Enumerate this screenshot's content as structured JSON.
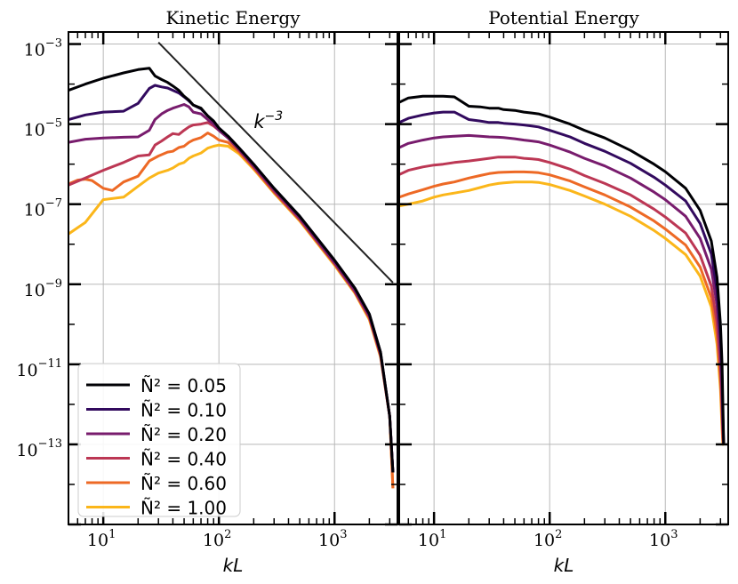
{
  "chart_data": [
    {
      "type": "line",
      "title": "Kinetic Energy",
      "xlabel": "kL",
      "ylabel": "",
      "xscale": "log",
      "yscale": "log",
      "xlim": [
        5,
        3500
      ],
      "ylim": [
        1e-15,
        0.002
      ],
      "x_ticks": [
        {
          "value": 10,
          "base": "10",
          "exp": "1"
        },
        {
          "value": 100,
          "base": "10",
          "exp": "2"
        },
        {
          "value": 1000,
          "base": "10",
          "exp": "3"
        }
      ],
      "y_ticks": [
        {
          "value": 0.001,
          "base": "10",
          "exp": "−3"
        },
        {
          "value": 1e-05,
          "base": "10",
          "exp": "−5"
        },
        {
          "value": 1e-07,
          "base": "10",
          "exp": "−7"
        },
        {
          "value": 1e-09,
          "base": "10",
          "exp": "−9"
        },
        {
          "value": 1e-11,
          "base": "10",
          "exp": "−11"
        },
        {
          "value": 1e-13,
          "base": "10",
          "exp": "−13"
        }
      ],
      "legend_position": "lower-left",
      "reference_line": {
        "label_base": "k",
        "label_exp": "−3",
        "x": [
          30,
          3200
        ],
        "y": [
          0.0011,
          1.1e-09
        ],
        "label_at": [
          200,
          1.2e-05
        ]
      },
      "series": [
        {
          "name": "Ñ² = 0.05",
          "color": "#000004",
          "x": [
            5,
            7,
            10,
            15,
            20,
            25,
            28,
            32,
            36,
            40,
            45,
            50,
            55,
            60,
            70,
            80,
            90,
            100,
            120,
            150,
            200,
            300,
            500,
            1000,
            1500,
            2000,
            2500,
            3000,
            3200
          ],
          "y": [
            7e-05,
            0.0001,
            0.00014,
            0.00019,
            0.00023,
            0.00025,
            0.00016,
            0.00013,
            0.00011,
            9e-05,
            7e-05,
            5e-05,
            4e-05,
            3e-05,
            2.5e-05,
            1.6e-05,
            1.2e-05,
            8e-06,
            5e-06,
            2.5e-06,
            1e-06,
            2.5e-07,
            5e-08,
            4e-09,
            8e-10,
            1.8e-10,
            2e-11,
            5e-13,
            2e-14
          ]
        },
        {
          "name": "Ñ² = 0.10",
          "color": "#320a5e",
          "x": [
            5,
            7,
            10,
            15,
            20,
            25,
            28,
            32,
            36,
            40,
            45,
            50,
            55,
            60,
            70,
            80,
            90,
            100,
            120,
            150,
            200,
            300,
            500,
            1000,
            1500,
            2000,
            2500,
            3000,
            3200
          ],
          "y": [
            1.3e-05,
            1.7e-05,
            2e-05,
            2.1e-05,
            3.3e-05,
            7.8e-05,
            9.3e-05,
            8.5e-05,
            8e-05,
            7e-05,
            6e-05,
            4.8e-05,
            3.8e-05,
            3e-05,
            2.4e-05,
            1.6e-05,
            1.2e-05,
            8e-06,
            5e-06,
            2.5e-06,
            1e-06,
            2.5e-07,
            5e-08,
            4e-09,
            8e-10,
            1.8e-10,
            2e-11,
            5e-13,
            2e-14
          ]
        },
        {
          "name": "Ñ² = 0.20",
          "color": "#781c6d",
          "x": [
            5,
            7,
            10,
            15,
            20,
            25,
            28,
            32,
            36,
            40,
            45,
            50,
            55,
            60,
            70,
            80,
            90,
            100,
            120,
            150,
            200,
            300,
            500,
            1000,
            1500,
            2000,
            2500,
            3000,
            3200
          ],
          "y": [
            3.5e-06,
            4.2e-06,
            4.5e-06,
            4.7e-06,
            4.8e-06,
            7e-06,
            1.3e-05,
            1.8e-05,
            2.2e-05,
            2.5e-05,
            2.8e-05,
            3.1e-05,
            2.7e-05,
            2e-05,
            1.8e-05,
            1.3e-05,
            1e-05,
            7e-06,
            4.5e-06,
            2.3e-06,
            9e-07,
            2.3e-07,
            4.5e-08,
            3.5e-09,
            7e-10,
            1.6e-10,
            1.8e-11,
            5e-13,
            2e-14
          ]
        },
        {
          "name": "Ñ² = 0.40",
          "color": "#bc3754",
          "x": [
            5,
            7,
            10,
            15,
            20,
            25,
            28,
            32,
            36,
            40,
            45,
            50,
            55,
            60,
            70,
            80,
            90,
            100,
            120,
            150,
            200,
            300,
            500,
            1000,
            1500,
            2000,
            2500,
            3000,
            3200
          ],
          "y": [
            3e-07,
            4.5e-07,
            7e-07,
            1.1e-06,
            1.6e-06,
            1.7e-06,
            3e-06,
            3.8e-06,
            4.8e-06,
            5.8e-06,
            5.5e-06,
            7e-06,
            8.5e-06,
            9.5e-06,
            1e-05,
            1.1e-05,
            9e-06,
            7e-06,
            4.5e-06,
            2.2e-06,
            8.5e-07,
            2.1e-07,
            4.2e-08,
            3.3e-09,
            6.5e-10,
            1.5e-10,
            1.7e-11,
            5e-13,
            2e-14
          ]
        },
        {
          "name": "Ñ² = 0.60",
          "color": "#ed6925",
          "x": [
            5,
            6,
            7,
            8,
            10,
            12,
            15,
            20,
            25,
            30,
            36,
            40,
            45,
            50,
            55,
            60,
            70,
            80,
            90,
            100,
            120,
            150,
            200,
            300,
            500,
            1000,
            1500,
            2000,
            2500,
            3000,
            3200
          ],
          "y": [
            3.2e-07,
            4e-07,
            4.2e-07,
            3.9e-07,
            2.5e-07,
            2.2e-07,
            3.6e-07,
            5e-07,
            1.2e-06,
            1.6e-06,
            2e-06,
            2.1e-06,
            2.6e-06,
            2.8e-06,
            3.5e-06,
            4e-06,
            4.6e-06,
            6e-06,
            5e-06,
            4e-06,
            3.5e-06,
            2e-06,
            8e-07,
            2e-07,
            4e-08,
            3.2e-09,
            6.3e-10,
            1.4e-10,
            1.6e-11,
            5e-13,
            8e-15
          ]
        },
        {
          "name": "Ñ² = 1.00",
          "color": "#fbb61a",
          "x": [
            5,
            7,
            10,
            15,
            20,
            25,
            30,
            36,
            40,
            45,
            50,
            55,
            60,
            70,
            80,
            90,
            100,
            120,
            150,
            200,
            300,
            500,
            1000,
            1500,
            2000,
            2500,
            3000,
            3200
          ],
          "y": [
            1.8e-08,
            3.5e-08,
            1.3e-07,
            1.5e-07,
            2.8e-07,
            4.5e-07,
            6e-07,
            7e-07,
            8e-07,
            1e-06,
            1.1e-06,
            1.4e-06,
            1.6e-06,
            1.9e-06,
            2.5e-06,
            2.8e-06,
            3e-06,
            2.8e-06,
            1.8e-06,
            7.5e-07,
            1.9e-07,
            3.8e-08,
            3e-09,
            6e-10,
            1.3e-10,
            1.5e-11,
            5e-13,
            8e-15
          ]
        }
      ]
    },
    {
      "type": "line",
      "title": "Potential Energy",
      "xlabel": "kL",
      "ylabel": "",
      "xscale": "log",
      "yscale": "log",
      "xlim": [
        5,
        3500
      ],
      "ylim": [
        1e-15,
        0.002
      ],
      "x_ticks": [
        {
          "value": 10,
          "base": "10",
          "exp": "1"
        },
        {
          "value": 100,
          "base": "10",
          "exp": "2"
        },
        {
          "value": 1000,
          "base": "10",
          "exp": "3"
        }
      ],
      "series": [
        {
          "name": "Ñ² = 0.05",
          "color": "#000004",
          "x": [
            5,
            6,
            8,
            10,
            12,
            15,
            20,
            25,
            30,
            36,
            40,
            50,
            60,
            70,
            80,
            100,
            150,
            200,
            300,
            500,
            800,
            1000,
            1500,
            2000,
            2500,
            2800,
            3000,
            3100,
            3150,
            3200
          ],
          "y": [
            3.5e-05,
            4.5e-05,
            5e-05,
            5e-05,
            5e-05,
            4.8e-05,
            2.8e-05,
            2.7e-05,
            2.5e-05,
            2.5e-05,
            2.3e-05,
            2.2e-05,
            2e-05,
            1.9e-05,
            1.8e-05,
            1.5e-05,
            1e-05,
            7e-06,
            4.5e-06,
            2.2e-06,
            1e-06,
            6.5e-07,
            2.5e-07,
            7e-08,
            1.2e-08,
            1.5e-09,
            1e-10,
            1e-11,
            1e-12,
            1e-13
          ]
        },
        {
          "name": "Ñ² = 0.10",
          "color": "#320a5e",
          "x": [
            5,
            6,
            8,
            10,
            12,
            15,
            20,
            25,
            30,
            36,
            40,
            50,
            60,
            70,
            80,
            100,
            150,
            200,
            300,
            500,
            800,
            1000,
            1500,
            2000,
            2500,
            2800,
            3000,
            3100,
            3150,
            3200
          ],
          "y": [
            1.1e-05,
            1.4e-05,
            1.7e-05,
            1.9e-05,
            2e-05,
            2e-05,
            1.3e-05,
            1.2e-05,
            1.1e-05,
            1.1e-05,
            1.05e-05,
            1e-05,
            9.5e-06,
            9e-06,
            8.5e-06,
            7e-06,
            4.8e-06,
            3.3e-06,
            2.1e-06,
            1.05e-06,
            4.7e-07,
            3e-07,
            1.2e-07,
            3.3e-08,
            5.7e-09,
            7e-10,
            5e-11,
            5e-12,
            5e-13,
            1e-13
          ]
        },
        {
          "name": "Ñ² = 0.20",
          "color": "#781c6d",
          "x": [
            5,
            6,
            8,
            10,
            12,
            15,
            20,
            25,
            30,
            36,
            40,
            50,
            60,
            70,
            80,
            100,
            150,
            200,
            300,
            500,
            800,
            1000,
            1500,
            2000,
            2500,
            2800,
            3000,
            3100,
            3150,
            3200
          ],
          "y": [
            2.6e-06,
            3.3e-06,
            4e-06,
            4.5e-06,
            4.8e-06,
            5e-06,
            5.2e-06,
            5e-06,
            4.8e-06,
            4.7e-06,
            4.6e-06,
            4.3e-06,
            4e-06,
            3.8e-06,
            3.6e-06,
            3e-06,
            2e-06,
            1.4e-06,
            9e-07,
            4.5e-07,
            2e-07,
            1.3e-07,
            5e-08,
            1.4e-08,
            2.4e-09,
            3e-10,
            2e-11,
            2e-12,
            3e-13,
            1e-13
          ]
        },
        {
          "name": "Ñ² = 0.40",
          "color": "#bc3754",
          "x": [
            5,
            6,
            8,
            10,
            12,
            15,
            20,
            25,
            30,
            36,
            40,
            50,
            60,
            70,
            80,
            100,
            150,
            200,
            300,
            500,
            800,
            1000,
            1500,
            2000,
            2500,
            2800,
            3000,
            3100,
            3150,
            3200
          ],
          "y": [
            5.5e-07,
            7e-07,
            8.5e-07,
            9.5e-07,
            1e-06,
            1.1e-06,
            1.2e-06,
            1.3e-06,
            1.4e-06,
            1.5e-06,
            1.5e-06,
            1.5e-06,
            1.4e-06,
            1.35e-06,
            1.3e-06,
            1.1e-06,
            7.5e-07,
            5.2e-07,
            3.3e-07,
            1.7e-07,
            7.5e-08,
            4.8e-08,
            1.9e-08,
            5.3e-09,
            9e-10,
            1.1e-10,
            8e-12,
            8e-13,
            1.5e-13,
            1e-13
          ]
        },
        {
          "name": "Ñ² = 0.60",
          "color": "#ed6925",
          "x": [
            5,
            6,
            8,
            10,
            12,
            15,
            20,
            25,
            30,
            36,
            40,
            50,
            60,
            70,
            80,
            100,
            150,
            200,
            300,
            500,
            800,
            1000,
            1500,
            2000,
            2500,
            2800,
            3000,
            3100,
            3150,
            3200
          ],
          "y": [
            1.5e-07,
            1.8e-07,
            2.3e-07,
            2.8e-07,
            3.2e-07,
            3.6e-07,
            4.5e-07,
            5.2e-07,
            5.8e-07,
            6.2e-07,
            6.3e-07,
            6.4e-07,
            6.4e-07,
            6.3e-07,
            6.1e-07,
            5.4e-07,
            3.8e-07,
            2.7e-07,
            1.7e-07,
            8.5e-08,
            3.8e-08,
            2.4e-08,
            9.5e-09,
            2.7e-09,
            4.6e-10,
            5.5e-11,
            4e-12,
            4e-13,
            1.2e-13,
            1e-13
          ]
        },
        {
          "name": "Ñ² = 1.00",
          "color": "#fbb61a",
          "x": [
            5,
            6,
            8,
            10,
            12,
            15,
            20,
            25,
            30,
            36,
            40,
            50,
            60,
            70,
            80,
            100,
            150,
            200,
            300,
            500,
            800,
            1000,
            1500,
            2000,
            2500,
            2800,
            3000,
            3100,
            3150,
            3200
          ],
          "y": [
            9e-08,
            1e-07,
            1.2e-07,
            1.5e-07,
            1.7e-07,
            1.9e-07,
            2.2e-07,
            2.6e-07,
            3e-07,
            3.3e-07,
            3.4e-07,
            3.6e-07,
            3.6e-07,
            3.6e-07,
            3.5e-07,
            3.1e-07,
            2.2e-07,
            1.6e-07,
            1e-07,
            5e-08,
            2.2e-08,
            1.4e-08,
            5.5e-09,
            1.6e-09,
            2.7e-10,
            3.2e-11,
            2.3e-12,
            2.3e-13,
            1e-13,
            1e-13
          ]
        }
      ]
    }
  ]
}
